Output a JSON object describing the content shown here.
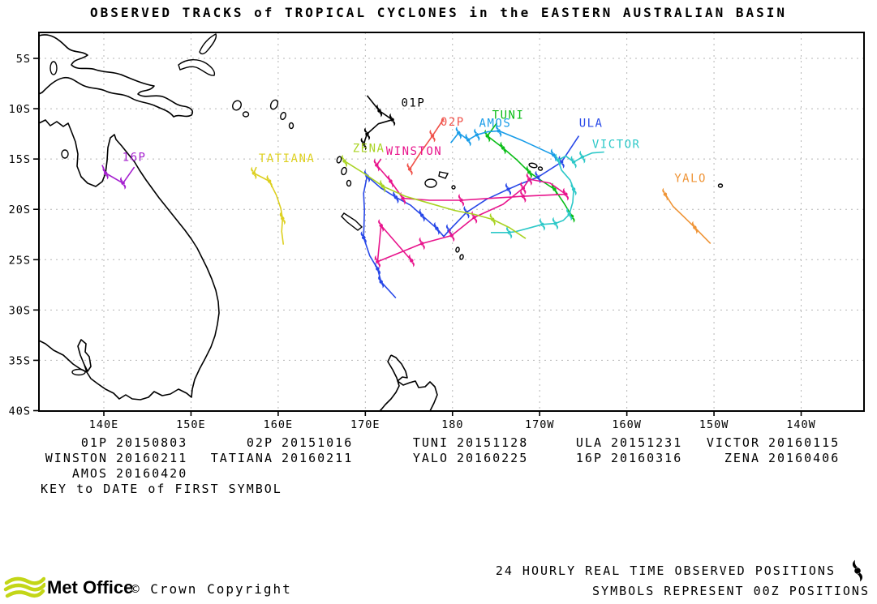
{
  "title": "OBSERVED TRACKS of TROPICAL CYCLONES in the EASTERN AUSTRALIAN BASIN",
  "chart_data": {
    "type": "map-tracks",
    "title": "OBSERVED TRACKS of TROPICAL CYCLONES in the EASTERN AUSTRALIAN BASIN",
    "basin": "EASTERN AUSTRALIAN BASIN",
    "lat_axis": {
      "unit": "degrees south",
      "ticks": [
        {
          "label": "5S",
          "value": 5
        },
        {
          "label": "10S",
          "value": 10
        },
        {
          "label": "15S",
          "value": 15
        },
        {
          "label": "20S",
          "value": 20
        },
        {
          "label": "25S",
          "value": 25
        },
        {
          "label": "30S",
          "value": 30
        },
        {
          "label": "35S",
          "value": 35
        },
        {
          "label": "40S",
          "value": 40
        }
      ]
    },
    "lon_axis": {
      "unit": "degrees (east of 140E, >180 shown as W)",
      "ticks": [
        {
          "label": "140E",
          "value": 140
        },
        {
          "label": "150E",
          "value": 150
        },
        {
          "label": "160E",
          "value": 160
        },
        {
          "label": "170E",
          "value": 170
        },
        {
          "label": "180",
          "value": 180
        },
        {
          "label": "170W",
          "value": 190
        },
        {
          "label": "160W",
          "value": 200
        },
        {
          "label": "150W",
          "value": 210
        },
        {
          "label": "140W",
          "value": 220
        }
      ]
    },
    "grid": true,
    "storms": [
      {
        "name": "01P",
        "color": "#000000",
        "first_symbol_date": "20150803",
        "label_lon": 175.5,
        "label_lat": 9.8,
        "track": [
          [
            170.2,
            8.7
          ],
          [
            171.6,
            10.2
          ],
          [
            173.1,
            11.1
          ],
          [
            171.5,
            11.5
          ],
          [
            170.2,
            12.5
          ],
          [
            169.8,
            13.5
          ]
        ],
        "symbols": [
          1,
          2,
          4,
          5
        ]
      },
      {
        "name": "02P",
        "color": "#f0524a",
        "first_symbol_date": "20151016",
        "label_lon": 180.0,
        "label_lat": 11.7,
        "track": [
          [
            179.0,
            11.0
          ],
          [
            177.7,
            12.7
          ],
          [
            176.3,
            14.4
          ],
          [
            175.1,
            16.0
          ]
        ],
        "symbols": [
          1,
          3
        ]
      },
      {
        "name": "TUNI",
        "color": "#09bd16",
        "first_symbol_date": "20151128",
        "label_lon": 186.4,
        "label_lat": 11.0,
        "track": [
          [
            185.1,
            11.4
          ],
          [
            184.0,
            12.7
          ],
          [
            185.8,
            13.9
          ],
          [
            187.4,
            15.1
          ],
          [
            188.8,
            16.3
          ],
          [
            190.3,
            17.2
          ],
          [
            191.7,
            18.0
          ],
          [
            192.8,
            19.4
          ],
          [
            193.7,
            20.7
          ]
        ],
        "symbols": [
          1,
          2,
          4,
          6,
          8
        ]
      },
      {
        "name": "ULA",
        "color": "#2848e8",
        "first_symbol_date": "20151231",
        "label_lon": 195.9,
        "label_lat": 11.8,
        "track": [
          [
            194.5,
            12.7
          ],
          [
            192.5,
            15.3
          ],
          [
            189.8,
            16.8
          ],
          [
            187.7,
            17.5
          ],
          [
            186.4,
            18.0
          ],
          [
            183.9,
            19.0
          ],
          [
            181.6,
            20.3
          ],
          [
            179.6,
            22.1
          ],
          [
            179.0,
            22.7
          ],
          [
            178.2,
            21.9
          ],
          [
            176.5,
            20.6
          ],
          [
            175.2,
            19.6
          ],
          [
            173.5,
            18.8
          ],
          [
            171.8,
            17.9
          ],
          [
            170.2,
            16.7
          ],
          [
            169.8,
            18.4
          ],
          [
            169.9,
            20.1
          ],
          [
            169.8,
            22.8
          ],
          [
            170.5,
            24.6
          ],
          [
            171.4,
            25.9
          ],
          [
            171.8,
            27.2
          ],
          [
            173.5,
            28.8
          ]
        ],
        "symbols": [
          1,
          2,
          4,
          6,
          7,
          9,
          10,
          12,
          14,
          17,
          19,
          20
        ]
      },
      {
        "name": "VICTOR",
        "color": "#2cc8c8",
        "first_symbol_date": "20160115",
        "label_lon": 198.8,
        "label_lat": 13.9,
        "track": [
          [
            197.4,
            14.3
          ],
          [
            196.0,
            14.4
          ],
          [
            194.9,
            14.8
          ],
          [
            193.9,
            15.3
          ],
          [
            193.0,
            14.7
          ],
          [
            192.1,
            15.1
          ],
          [
            192.5,
            16.1
          ],
          [
            193.5,
            17.1
          ],
          [
            193.9,
            18.0
          ],
          [
            193.8,
            19.3
          ],
          [
            193.4,
            20.5
          ],
          [
            192.7,
            21.1
          ],
          [
            191.8,
            21.4
          ],
          [
            190.3,
            21.5
          ],
          [
            188.6,
            21.9
          ],
          [
            187.3,
            22.2
          ],
          [
            186.5,
            22.3
          ],
          [
            184.4,
            22.3
          ]
        ],
        "symbols": [
          2,
          3,
          5,
          8,
          10,
          12,
          13,
          16
        ]
      },
      {
        "name": "WINSTON",
        "color": "#e8148c",
        "first_symbol_date": "20160211",
        "label_lon": 175.6,
        "label_lat": 14.6,
        "track": [
          [
            171.8,
            15.0
          ],
          [
            171.3,
            15.6
          ],
          [
            172.9,
            17.2
          ],
          [
            174.3,
            18.9
          ],
          [
            177.4,
            19.1
          ],
          [
            181.0,
            19.1
          ],
          [
            184.4,
            18.9
          ],
          [
            188.1,
            18.7
          ],
          [
            190.6,
            18.6
          ],
          [
            193.0,
            18.5
          ],
          [
            191.2,
            17.4
          ],
          [
            188.8,
            17.0
          ],
          [
            188.1,
            17.9
          ],
          [
            185.8,
            19.5
          ],
          [
            182.5,
            20.8
          ],
          [
            179.9,
            22.6
          ],
          [
            176.5,
            23.4
          ],
          [
            171.4,
            25.2
          ],
          [
            171.8,
            21.6
          ],
          [
            175.3,
            25.1
          ]
        ],
        "symbols": [
          1,
          2,
          3,
          5,
          7,
          9,
          11,
          12,
          14,
          15,
          16,
          17,
          18,
          19
        ]
      },
      {
        "name": "TATIANA",
        "color": "#ddd020",
        "first_symbol_date": "20160211",
        "label_lon": 161.0,
        "label_lat": 15.3,
        "track": [
          [
            157.5,
            15.8
          ],
          [
            157.2,
            16.4
          ],
          [
            159.0,
            17.2
          ],
          [
            159.8,
            18.6
          ],
          [
            160.3,
            19.9
          ],
          [
            160.5,
            20.9
          ],
          [
            160.4,
            22.2
          ],
          [
            160.6,
            23.5
          ]
        ],
        "symbols": [
          1,
          2,
          5
        ]
      },
      {
        "name": "YALO",
        "color": "#ef9436",
        "first_symbol_date": "20160225",
        "label_lon": 207.3,
        "label_lat": 17.3,
        "track": [
          [
            204.4,
            18.5
          ],
          [
            205.3,
            19.7
          ],
          [
            206.5,
            20.7
          ],
          [
            207.8,
            21.8
          ],
          [
            208.8,
            22.7
          ],
          [
            209.6,
            23.4
          ]
        ],
        "symbols": [
          0,
          3
        ]
      },
      {
        "name": "16P",
        "color": "#a520cf",
        "first_symbol_date": "20160316",
        "label_lon": 143.5,
        "label_lat": 15.2,
        "track": [
          [
            139.8,
            15.6
          ],
          [
            140.2,
            16.4
          ],
          [
            142.2,
            17.4
          ],
          [
            143.5,
            15.8
          ]
        ],
        "symbols": [
          1,
          2
        ]
      },
      {
        "name": "ZENA",
        "color": "#a9d322",
        "first_symbol_date": "20160406",
        "label_lon": 170.4,
        "label_lat": 14.3,
        "track": [
          [
            167.6,
            15.2
          ],
          [
            169.8,
            16.4
          ],
          [
            172.0,
            17.7
          ],
          [
            174.6,
            18.7
          ],
          [
            177.4,
            19.4
          ],
          [
            180.2,
            20.1
          ],
          [
            182.5,
            20.5
          ],
          [
            184.6,
            21.0
          ],
          [
            186.5,
            21.8
          ],
          [
            188.4,
            22.9
          ]
        ],
        "symbols": [
          0,
          2,
          7
        ]
      },
      {
        "name": "AMOS",
        "color": "#189ce8",
        "first_symbol_date": "20160420",
        "label_lon": 184.9,
        "label_lat": 11.8,
        "track": [
          [
            179.8,
            13.4
          ],
          [
            180.7,
            12.4
          ],
          [
            181.8,
            13.1
          ],
          [
            182.8,
            12.6
          ],
          [
            184.0,
            12.3
          ],
          [
            185.3,
            12.2
          ],
          [
            188.1,
            13.2
          ],
          [
            191.6,
            14.6
          ]
        ],
        "symbols": [
          1,
          2,
          3,
          5,
          7
        ]
      }
    ]
  },
  "legend": {
    "key_note": "KEY to DATE of FIRST SYMBOL",
    "entries": [
      {
        "name": "01P",
        "date": "20150803"
      },
      {
        "name": "02P",
        "date": "20151016"
      },
      {
        "name": "TUNI",
        "date": "20151128"
      },
      {
        "name": "ULA",
        "date": "20151231"
      },
      {
        "name": "VICTOR",
        "date": "20160115"
      },
      {
        "name": "WINSTON",
        "date": "20160211"
      },
      {
        "name": "TATIANA",
        "date": "20160211"
      },
      {
        "name": "YALO",
        "date": "20160225"
      },
      {
        "name": "16P",
        "date": "20160316"
      },
      {
        "name": "ZENA",
        "date": "20160406"
      },
      {
        "name": "AMOS",
        "date": "20160420"
      }
    ]
  },
  "footer": {
    "line1": "24 HOURLY REAL TIME OBSERVED POSITIONS",
    "line2": "SYMBOLS REPRESENT 00Z POSITIONS",
    "logo_text": "Met Office",
    "copyright": "© Crown Copyright",
    "logo_color": "#c3d617"
  }
}
